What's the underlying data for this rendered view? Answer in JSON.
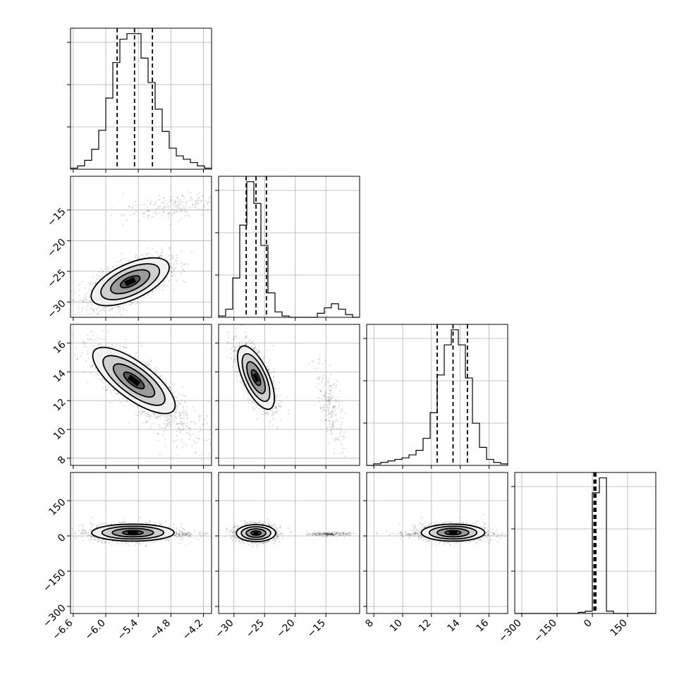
{
  "chart_data": {
    "type": "corner",
    "parameters": [
      {
        "range": [
          -6.65,
          -4.05
        ],
        "ticks": [
          -6.6,
          -6.0,
          -5.4,
          -4.8,
          -4.2
        ],
        "tick_labels": [
          "−6.6",
          "−6.0",
          "−5.4",
          "−4.8",
          "−4.2"
        ],
        "quantiles": [
          -5.79,
          -5.47,
          -5.14
        ]
      },
      {
        "range": [
          -32.5,
          -9.5
        ],
        "ticks": [
          -30,
          -25,
          -20,
          -15
        ],
        "tick_labels": [
          "−30",
          "−25",
          "−20",
          "−15"
        ],
        "quantiles": [
          -28.0,
          -26.4,
          -24.7
        ]
      },
      {
        "range": [
          7.5,
          17.3
        ],
        "ticks": [
          8,
          10,
          12,
          14,
          16
        ],
        "tick_labels": [
          "8",
          "10",
          "12",
          "14",
          "16"
        ],
        "quantiles": [
          12.4,
          13.5,
          14.5
        ]
      },
      {
        "range": [
          -330,
          270
        ],
        "ticks": [
          -300,
          -150,
          0,
          150
        ],
        "tick_labels": [
          "−300",
          "−150",
          "0",
          "150"
        ],
        "quantiles": [
          7,
          11,
          15
        ]
      }
    ],
    "histograms": [
      {
        "edges": [
          -6.65,
          -6.52,
          -6.39,
          -6.26,
          -6.13,
          -6.0,
          -5.87,
          -5.74,
          -5.61,
          -5.48,
          -5.35,
          -5.22,
          -5.09,
          -4.96,
          -4.83,
          -4.7,
          -4.57,
          -4.44,
          -4.31,
          -4.18,
          -4.05
        ],
        "counts": [
          1,
          3,
          8,
          18,
          35,
          64,
          96,
          117,
          122,
          122,
          100,
          78,
          54,
          34,
          19,
          12,
          9,
          6,
          3,
          1
        ]
      },
      {
        "edges": [
          -32.5,
          -31.35,
          -30.2,
          -29.05,
          -27.9,
          -26.75,
          -25.6,
          -24.45,
          -23.3,
          -22.15,
          -21.0,
          -19.85,
          -18.7,
          -17.55,
          -16.4,
          -15.25,
          -14.1,
          -12.95,
          -11.8,
          -10.65,
          -9.5
        ],
        "counts": [
          1,
          6,
          29,
          68,
          100,
          84,
          53,
          18,
          4,
          1,
          0,
          0,
          0,
          0,
          3,
          7,
          10,
          6,
          2,
          0
        ]
      },
      {
        "edges": [
          7.5,
          7.99,
          8.48,
          8.97,
          9.46,
          9.95,
          10.44,
          10.93,
          11.42,
          11.91,
          12.4,
          12.89,
          13.38,
          13.87,
          14.36,
          14.85,
          15.34,
          15.83,
          16.32,
          16.81,
          17.3
        ],
        "counts": [
          0,
          1,
          2,
          3,
          4,
          5,
          7,
          10,
          18,
          35,
          60,
          80,
          90,
          80,
          58,
          28,
          12,
          4,
          2,
          1
        ]
      },
      {
        "edges": [
          -330,
          -300,
          -270,
          -240,
          -210,
          -180,
          -150,
          -120,
          -90,
          -60,
          -30,
          0,
          30,
          60,
          90,
          120,
          150,
          180,
          210,
          240,
          270
        ],
        "counts": [
          0,
          0,
          0,
          0,
          0,
          0,
          0,
          0,
          0,
          1,
          2,
          105,
          118,
          2,
          0,
          0,
          0,
          0,
          0,
          0
        ]
      }
    ],
    "pairs": [
      {
        "row": 1,
        "col": 0,
        "corr": 0.6,
        "blobs": [
          {
            "mx": -5.55,
            "my": -26.7,
            "sx": 0.36,
            "sy": 1.95,
            "w": 0.9
          },
          {
            "mx": -4.72,
            "my": -14.4,
            "sx": 0.48,
            "sy": 1.2,
            "w": 0.1
          }
        ]
      },
      {
        "row": 2,
        "col": 0,
        "corr": -0.75,
        "blobs": [
          {
            "mx": -5.48,
            "my": 13.4,
            "sx": 0.38,
            "sy": 1.15,
            "w": 0.88
          },
          {
            "mx": -4.85,
            "my": 11.0,
            "sx": 0.45,
            "sy": 1.4,
            "w": 0.12
          }
        ]
      },
      {
        "row": 2,
        "col": 1,
        "corr": -0.65,
        "blobs": [
          {
            "mx": -26.4,
            "my": 13.6,
            "sx": 1.5,
            "sy": 1.1,
            "w": 0.9
          },
          {
            "mx": -14.2,
            "my": 11.5,
            "sx": 1.2,
            "sy": 1.5,
            "w": 0.1
          }
        ]
      },
      {
        "row": 3,
        "col": 0,
        "corr": 0.0,
        "blobs": [
          {
            "mx": -5.5,
            "my": 14,
            "sx": 0.38,
            "sy": 18,
            "w": 0.88
          },
          {
            "mx": -5.2,
            "my": 8,
            "sx": 0.55,
            "sy": 5,
            "w": 0.12
          }
        ]
      },
      {
        "row": 3,
        "col": 1,
        "corr": 0.0,
        "blobs": [
          {
            "mx": -26.4,
            "my": 12,
            "sx": 1.6,
            "sy": 18,
            "w": 0.9
          },
          {
            "mx": -14.3,
            "my": 8,
            "sx": 1.6,
            "sy": 4,
            "w": 0.1
          }
        ]
      },
      {
        "row": 3,
        "col": 2,
        "corr": 0.0,
        "blobs": [
          {
            "mx": 13.5,
            "my": 14,
            "sx": 1.1,
            "sy": 18,
            "w": 0.9
          },
          {
            "mx": 12.5,
            "my": 8,
            "sx": 1.8,
            "sy": 5,
            "w": 0.1
          }
        ]
      }
    ],
    "grid": true,
    "xlabels_on_bottom_row_only": true,
    "ylabels_on_first_column_only": true,
    "colors": {
      "points": "#000000",
      "contour": "#000000",
      "density_light": "#f2f2f2",
      "density_dark": "#000000",
      "grid": "#b0b0b0"
    }
  }
}
